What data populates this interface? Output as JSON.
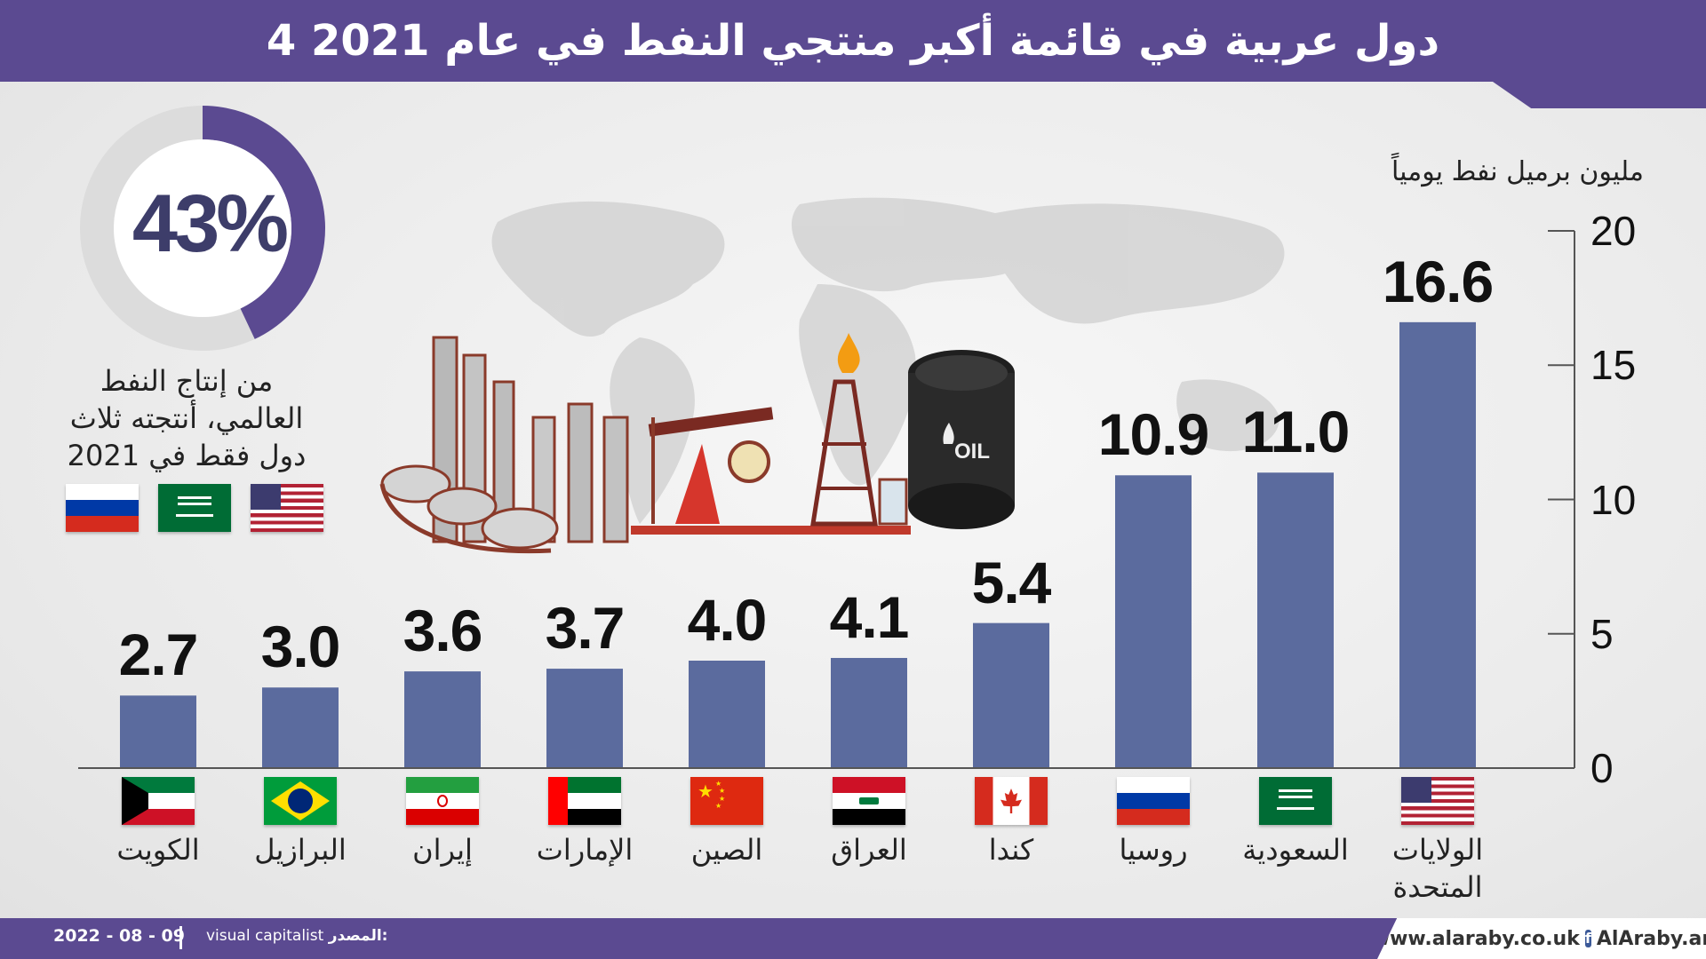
{
  "header": {
    "title": "4 دول عربية في قائمة أكبر منتجي النفط في عام 2021"
  },
  "footer": {
    "date": "2022 - 08 - 09",
    "source_label": "المصدر:",
    "source": "visual capitalist",
    "site": "www.alaraby.co.uk",
    "social": "AlAraby.ar"
  },
  "summary": {
    "percent": "43%",
    "share": 0.43,
    "caption_lines": [
      "من إنتاج النفط",
      "العالمي، أنتجته ثلاث",
      "دول فقط في 2021"
    ],
    "flags": [
      "flag-russia",
      "flag-saudi-arabia",
      "flag-usa"
    ]
  },
  "illustration": {
    "barrel_label": "OIL"
  },
  "chart_data": {
    "type": "bar",
    "ylabel": "مليون برميل نفط يومياً",
    "ylim": [
      0,
      20
    ],
    "yticks": [
      0,
      5,
      10,
      15,
      20
    ],
    "categories": [
      "الكويت",
      "البرازيل",
      "إيران",
      "الإمارات",
      "الصين",
      "العراق",
      "كندا",
      "روسيا",
      "السعودية",
      "الولايات المتحدة"
    ],
    "category_lines": [
      [
        "الكويت"
      ],
      [
        "البرازيل"
      ],
      [
        "إيران"
      ],
      [
        "الإمارات"
      ],
      [
        "الصين"
      ],
      [
        "العراق"
      ],
      [
        "كندا"
      ],
      [
        "روسيا"
      ],
      [
        "السعودية"
      ],
      [
        "الولايات",
        "المتحدة"
      ]
    ],
    "values": [
      2.7,
      3.0,
      3.6,
      3.7,
      4.0,
      4.1,
      5.4,
      10.9,
      11.0,
      16.6
    ],
    "value_labels": [
      "2.7",
      "3.0",
      "3.6",
      "3.7",
      "4.0",
      "4.1",
      "5.4",
      "10.9",
      "11.0",
      "16.6"
    ],
    "flags": [
      "flag-kuwait",
      "flag-brazil",
      "flag-iran",
      "flag-uae",
      "flag-china",
      "flag-iraq",
      "flag-canada",
      "flag-russia",
      "flag-saudi-arabia",
      "flag-usa"
    ],
    "bar_color": "#5b6b9e",
    "grid": false,
    "legend": "none"
  }
}
